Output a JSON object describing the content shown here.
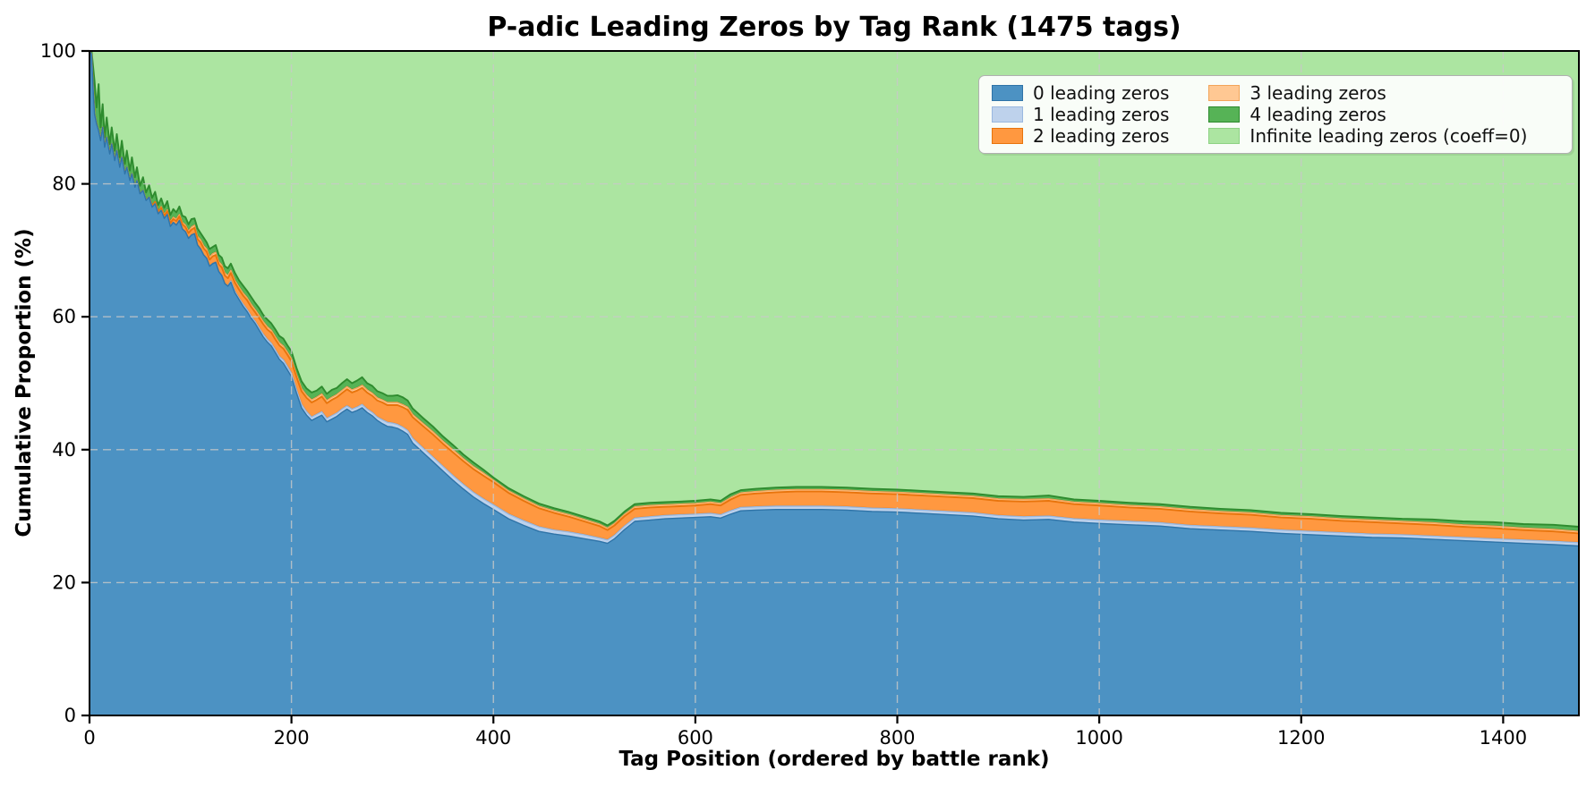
{
  "chart_data": {
    "type": "area",
    "stacked": true,
    "title": "P-adic Leading Zeros by Tag Rank (1475 tags)",
    "xlabel": "Tag Position (ordered by battle rank)",
    "ylabel": "Cumulative Proportion (%)",
    "xlim": [
      0,
      1475
    ],
    "ylim": [
      0,
      100
    ],
    "xticks": [
      0,
      200,
      400,
      600,
      800,
      1000,
      1200,
      1400
    ],
    "yticks": [
      0,
      20,
      40,
      60,
      80,
      100
    ],
    "grid": "dashed light-gray, both axes",
    "legend_position": "upper right, 2 columns",
    "x": [
      0,
      2,
      4,
      5,
      7,
      9,
      11,
      13,
      15,
      17,
      20,
      22,
      25,
      27,
      30,
      32,
      35,
      37,
      40,
      42,
      45,
      47,
      50,
      53,
      56,
      59,
      62,
      65,
      68,
      71,
      74,
      77,
      80,
      83,
      86,
      89,
      92,
      95,
      98,
      101,
      104,
      107,
      110,
      113,
      116,
      119,
      122,
      125,
      128,
      131,
      134,
      137,
      140,
      144,
      148,
      152,
      156,
      160,
      164,
      168,
      172,
      176,
      180,
      184,
      188,
      192,
      196,
      200,
      205,
      210,
      215,
      220,
      225,
      230,
      235,
      240,
      245,
      250,
      255,
      260,
      265,
      270,
      275,
      280,
      285,
      290,
      295,
      300,
      305,
      310,
      315,
      320,
      330,
      340,
      350,
      360,
      370,
      380,
      390,
      400,
      415,
      430,
      445,
      460,
      475,
      490,
      505,
      513,
      520,
      530,
      540,
      555,
      570,
      585,
      600,
      615,
      625,
      635,
      645,
      660,
      680,
      700,
      725,
      750,
      775,
      800,
      825,
      850,
      875,
      900,
      925,
      950,
      975,
      1000,
      1030,
      1060,
      1090,
      1120,
      1150,
      1180,
      1210,
      1240,
      1270,
      1300,
      1330,
      1360,
      1390,
      1420,
      1450,
      1475
    ],
    "series": [
      {
        "name": "0 leading zeros",
        "fill": "#4c92c3",
        "edge": "#2f74a8",
        "values": [
          100,
          99.5,
          93,
          90.5,
          89,
          88,
          86.5,
          88.5,
          85.5,
          87,
          84.5,
          86,
          83.5,
          85,
          82.5,
          84,
          81.5,
          82.5,
          80.5,
          81.5,
          79.5,
          80.5,
          78.5,
          79,
          77.5,
          78,
          76.5,
          77,
          75.5,
          76,
          74.8,
          75.4,
          73.6,
          74.2,
          73.8,
          74.5,
          73.2,
          72.8,
          71.8,
          72.3,
          72.5,
          70.8,
          70.2,
          69.3,
          68.8,
          67.6,
          68,
          68.2,
          66.8,
          66.2,
          65,
          64.6,
          65.2,
          63.6,
          62.6,
          61.6,
          60.8,
          59.8,
          59,
          58,
          57,
          56.2,
          55.6,
          54.6,
          53.6,
          53,
          52,
          51,
          48.5,
          46.3,
          45.2,
          44.4,
          44.8,
          45.2,
          44.2,
          44.6,
          45,
          45.6,
          46.1,
          45.6,
          45.9,
          46.3,
          45.6,
          45.1,
          44.4,
          43.9,
          43.5,
          43.4,
          43.2,
          42.8,
          42.3,
          41,
          39.6,
          38.2,
          36.8,
          35.4,
          34.1,
          32.9,
          31.9,
          31,
          29.6,
          28.6,
          27.7,
          27.3,
          27,
          26.6,
          26.2,
          25.9,
          26.6,
          28,
          29.2,
          29.4,
          29.6,
          29.7,
          29.8,
          29.9,
          29.7,
          30.3,
          30.8,
          30.9,
          31,
          31,
          31,
          30.9,
          30.7,
          30.6,
          30.4,
          30.2,
          30,
          29.6,
          29.4,
          29.5,
          29.1,
          28.9,
          28.7,
          28.5,
          28.1,
          27.9,
          27.7,
          27.4,
          27.2,
          27,
          26.8,
          26.7,
          26.5,
          26.3,
          26.1,
          25.9,
          25.7,
          25.5
        ]
      },
      {
        "name": "1 leading zeros",
        "fill": "#bed2ec",
        "edge": "#9ab8e0",
        "values": [
          0,
          0,
          0,
          0,
          0,
          0,
          0,
          0,
          0,
          0,
          0,
          0,
          0,
          0,
          0,
          0,
          0,
          0,
          0,
          0,
          0,
          0,
          0,
          0,
          0,
          0,
          0,
          0,
          0,
          0,
          0,
          0,
          0,
          0,
          0,
          0,
          0,
          0,
          0,
          0,
          0,
          0,
          0,
          0,
          0,
          0,
          0,
          0,
          0,
          0,
          0,
          0,
          0.2,
          0.2,
          0.2,
          0.3,
          0.3,
          0.3,
          0.3,
          0.3,
          0.4,
          0.4,
          0.4,
          0.4,
          0.4,
          0.5,
          0.5,
          0.5,
          0.5,
          0.5,
          0.5,
          0.5,
          0.5,
          0.5,
          0.5,
          0.5,
          0.5,
          0.5,
          0.5,
          0.5,
          0.5,
          0.5,
          0.5,
          0.5,
          0.5,
          0.6,
          0.6,
          0.6,
          0.6,
          0.6,
          0.6,
          0.7,
          0.7,
          0.7,
          0.7,
          0.7,
          0.7,
          0.7,
          0.7,
          0.7,
          0.7,
          0.7,
          0.7,
          0.6,
          0.6,
          0.6,
          0.5,
          0.5,
          0.5,
          0.5,
          0.5,
          0.5,
          0.5,
          0.5,
          0.5,
          0.5,
          0.5,
          0.5,
          0.5,
          0.5,
          0.5,
          0.5,
          0.5,
          0.5,
          0.5,
          0.5,
          0.5,
          0.5,
          0.5,
          0.5,
          0.5,
          0.5,
          0.5,
          0.5,
          0.5,
          0.5,
          0.5,
          0.5,
          0.5,
          0.5,
          0.5,
          0.5,
          0.5,
          0.5,
          0.5,
          0.5,
          0.5,
          0.5,
          0.5,
          0.5
        ]
      },
      {
        "name": "2 leading zeros",
        "fill": "#ff9840",
        "edge": "#e8740c",
        "values": [
          0,
          0,
          0,
          0,
          0,
          0,
          0,
          0,
          0,
          0,
          0,
          0,
          0,
          0,
          0,
          0,
          0,
          0,
          0,
          0,
          0,
          0,
          0,
          0,
          0,
          0,
          0.2,
          0.3,
          0.3,
          0.4,
          0.4,
          0.5,
          0.5,
          0.5,
          0.6,
          0.6,
          0.7,
          0.7,
          0.8,
          0.8,
          0.9,
          0.9,
          1,
          1,
          1,
          1,
          1.1,
          1.1,
          1.1,
          1.2,
          1.2,
          1.2,
          1.2,
          1.3,
          1.3,
          1.3,
          1.4,
          1.4,
          1.4,
          1.5,
          1.5,
          1.5,
          1.6,
          1.6,
          1.7,
          1.7,
          1.8,
          1.8,
          1.9,
          2,
          2.1,
          2.2,
          2.2,
          2.3,
          2.3,
          2.4,
          2.4,
          2.4,
          2.5,
          2.5,
          2.5,
          2.5,
          2.5,
          2.5,
          2.5,
          2.6,
          2.6,
          2.7,
          2.9,
          3,
          3.1,
          3.2,
          3.3,
          3.4,
          3.4,
          3.5,
          3.5,
          3.5,
          3.5,
          3.4,
          3.2,
          3,
          2.8,
          2.6,
          2.3,
          2,
          1.8,
          1.5,
          1.5,
          1.5,
          1.4,
          1.4,
          1.3,
          1.3,
          1.3,
          1.4,
          1.4,
          1.7,
          1.9,
          2,
          2.1,
          2.2,
          2.2,
          2.2,
          2.2,
          2.2,
          2.2,
          2.2,
          2.2,
          2.2,
          2.3,
          2.3,
          2.2,
          2.2,
          2.1,
          2.1,
          2.1,
          2,
          2,
          1.9,
          1.9,
          1.8,
          1.8,
          1.7,
          1.7,
          1.6,
          1.6,
          1.5,
          1.5,
          1.4
        ]
      },
      {
        "name": "3 leading zeros",
        "fill": "#ffc893",
        "edge": "#f3a55a",
        "values": [
          0,
          0,
          0,
          0,
          0,
          0,
          0,
          0,
          0,
          0,
          0,
          0,
          0,
          0,
          0,
          0,
          0,
          0,
          0,
          0,
          0,
          0,
          0,
          0,
          0,
          0,
          0,
          0,
          0,
          0.2,
          0.2,
          0.2,
          0.2,
          0.3,
          0.3,
          0.3,
          0.3,
          0.3,
          0.3,
          0.4,
          0.4,
          0.4,
          0.4,
          0.4,
          0.4,
          0.4,
          0.4,
          0.4,
          0.4,
          0.4,
          0.4,
          0.4,
          0.4,
          0.4,
          0.4,
          0.4,
          0.4,
          0.4,
          0.4,
          0.4,
          0.4,
          0.4,
          0.4,
          0.4,
          0.4,
          0.4,
          0.4,
          0.4,
          0.4,
          0.4,
          0.4,
          0.4,
          0.4,
          0.4,
          0.4,
          0.4,
          0.4,
          0.4,
          0.4,
          0.4,
          0.4,
          0.4,
          0.4,
          0.4,
          0.4,
          0.4,
          0.4,
          0.4,
          0.4,
          0.4,
          0.4,
          0.4,
          0.4,
          0.4,
          0.4,
          0.4,
          0.4,
          0.4,
          0.4,
          0.3,
          0.3,
          0.3,
          0.3,
          0.3,
          0.3,
          0.3,
          0.3,
          0.3,
          0.3,
          0.3,
          0.3,
          0.3,
          0.3,
          0.3,
          0.3,
          0.3,
          0.3,
          0.3,
          0.3,
          0.3,
          0.3,
          0.3,
          0.3,
          0.3,
          0.3,
          0.3,
          0.3,
          0.3,
          0.3,
          0.3,
          0.3,
          0.3,
          0.3,
          0.3,
          0.3,
          0.3,
          0.3,
          0.3,
          0.3,
          0.3,
          0.3,
          0.3,
          0.3,
          0.3,
          0.3,
          0.3,
          0.3,
          0.3,
          0.3,
          0.3
        ]
      },
      {
        "name": "4 leading zeros",
        "fill": "#56b356",
        "edge": "#2e8b2e",
        "values": [
          0,
          0.5,
          4,
          5,
          2.5,
          7,
          2,
          3.5,
          1.5,
          3,
          1.5,
          2.5,
          1.5,
          2.5,
          1.5,
          2.5,
          1.5,
          2.5,
          1.5,
          2.5,
          1.5,
          2,
          1.2,
          2,
          1.2,
          1.8,
          1.2,
          1.5,
          1,
          1.2,
          1,
          1.3,
          1,
          1.2,
          1,
          1.2,
          1,
          1.2,
          1,
          1.2,
          1,
          1.2,
          1,
          1.2,
          1,
          1.2,
          1,
          1.1,
          1,
          1.1,
          1,
          1.1,
          1,
          1.1,
          1,
          1.1,
          1,
          1.1,
          1,
          1.1,
          1,
          1.1,
          1,
          1.1,
          1,
          1.1,
          1,
          1.1,
          1,
          1.1,
          1,
          1.1,
          1,
          1.1,
          1,
          1.1,
          1,
          1.1,
          1.1,
          1,
          1.1,
          1.2,
          1,
          1.1,
          1,
          1,
          1,
          1,
          1.1,
          1.1,
          1,
          0.9,
          0.8,
          0.8,
          0.7,
          0.7,
          0.6,
          0.6,
          0.5,
          0.4,
          0.4,
          0.4,
          0.4,
          0.4,
          0.4,
          0.4,
          0.4,
          0.4,
          0.4,
          0.4,
          0.4,
          0.4,
          0.4,
          0.4,
          0.4,
          0.4,
          0.4,
          0.5,
          0.4,
          0.4,
          0.4,
          0.4,
          0.4,
          0.4,
          0.4,
          0.4,
          0.4,
          0.4,
          0.4,
          0.4,
          0.4,
          0.5,
          0.4,
          0.4,
          0.4,
          0.4,
          0.4,
          0.4,
          0.4,
          0.4,
          0.4,
          0.4,
          0.4,
          0.4,
          0.5,
          0.5,
          0.6,
          0.6,
          0.7,
          0.7
        ]
      },
      {
        "name": "Infinite leading zeros (coeff=0)",
        "fill": "#ace5a1",
        "edge": "#8ed284",
        "derived": "100 minus the sum of the other five series at each x (fills the stack up to 100%)"
      }
    ]
  }
}
